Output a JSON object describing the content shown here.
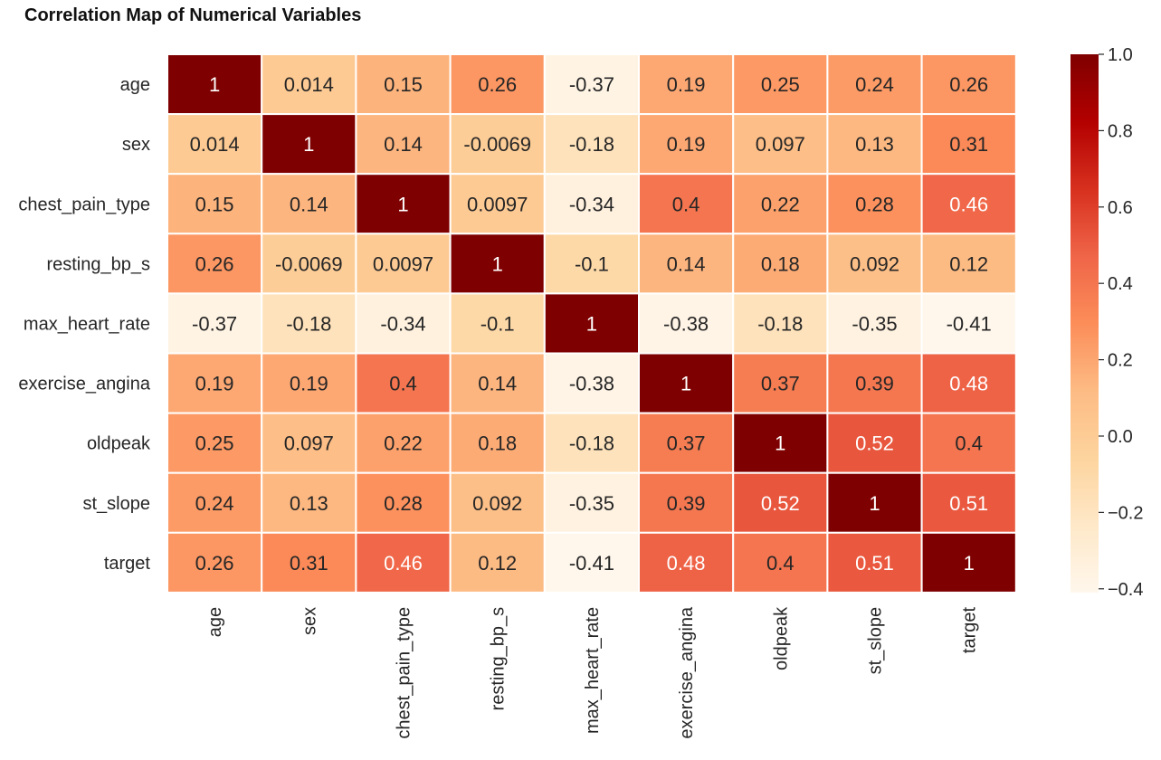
{
  "chart_data": {
    "type": "heatmap",
    "title": "Correlation Map of Numerical Variables",
    "row_labels": [
      "age",
      "sex",
      "chest_pain_type",
      "resting_bp_s",
      "max_heart_rate",
      "exercise_angina",
      "oldpeak",
      "st_slope",
      "target"
    ],
    "col_labels": [
      "age",
      "sex",
      "chest_pain_type",
      "resting_bp_s",
      "max_heart_rate",
      "exercise_angina",
      "oldpeak",
      "st_slope",
      "target"
    ],
    "values": [
      [
        1,
        0.014,
        0.15,
        0.26,
        -0.37,
        0.19,
        0.25,
        0.24,
        0.26
      ],
      [
        0.014,
        1,
        0.14,
        -0.0069,
        -0.18,
        0.19,
        0.097,
        0.13,
        0.31
      ],
      [
        0.15,
        0.14,
        1,
        0.0097,
        -0.34,
        0.4,
        0.22,
        0.28,
        0.46
      ],
      [
        0.26,
        -0.0069,
        0.0097,
        1,
        -0.1,
        0.14,
        0.18,
        0.092,
        0.12
      ],
      [
        -0.37,
        -0.18,
        -0.34,
        -0.1,
        1,
        -0.38,
        -0.18,
        -0.35,
        -0.41
      ],
      [
        0.19,
        0.19,
        0.4,
        0.14,
        -0.38,
        1,
        0.37,
        0.39,
        0.48
      ],
      [
        0.25,
        0.097,
        0.22,
        0.18,
        -0.18,
        0.37,
        1,
        0.52,
        0.4
      ],
      [
        0.24,
        0.13,
        0.28,
        0.092,
        -0.35,
        0.39,
        0.52,
        1,
        0.51
      ],
      [
        0.26,
        0.31,
        0.46,
        0.12,
        -0.41,
        0.48,
        0.4,
        0.51,
        1
      ]
    ],
    "labels": [
      [
        "1",
        "0.014",
        "0.15",
        "0.26",
        "-0.37",
        "0.19",
        "0.25",
        "0.24",
        "0.26"
      ],
      [
        "0.014",
        "1",
        "0.14",
        "-0.0069",
        "-0.18",
        "0.19",
        "0.097",
        "0.13",
        "0.31"
      ],
      [
        "0.15",
        "0.14",
        "1",
        "0.0097",
        "-0.34",
        "0.4",
        "0.22",
        "0.28",
        "0.46"
      ],
      [
        "0.26",
        "-0.0069",
        "0.0097",
        "1",
        "-0.1",
        "0.14",
        "0.18",
        "0.092",
        "0.12"
      ],
      [
        "-0.37",
        "-0.18",
        "-0.34",
        "-0.1",
        "1",
        "-0.38",
        "-0.18",
        "-0.35",
        "-0.41"
      ],
      [
        "0.19",
        "0.19",
        "0.4",
        "0.14",
        "-0.38",
        "1",
        "0.37",
        "0.39",
        "0.48"
      ],
      [
        "0.25",
        "0.097",
        "0.22",
        "0.18",
        "-0.18",
        "0.37",
        "1",
        "0.52",
        "0.4"
      ],
      [
        "0.24",
        "0.13",
        "0.28",
        "0.092",
        "-0.35",
        "0.39",
        "0.52",
        "1",
        "0.51"
      ],
      [
        "0.26",
        "0.31",
        "0.46",
        "0.12",
        "-0.41",
        "0.48",
        "0.4",
        "0.51",
        "1"
      ]
    ],
    "colorbar": {
      "range": [
        -0.41,
        1
      ],
      "ticks": [
        1.0,
        0.8,
        0.6,
        0.4,
        0.2,
        0.0,
        -0.2,
        -0.4
      ],
      "tick_labels": [
        "1.0",
        "0.8",
        "0.6",
        "0.4",
        "0.2",
        "0.0",
        "−0.2",
        "−0.4"
      ]
    },
    "colormap": "OrRd",
    "colormap_stops": [
      "#fff7ec",
      "#fee8c8",
      "#fdd49e",
      "#fdbb84",
      "#fc8d59",
      "#ef6548",
      "#d7301f",
      "#b30000",
      "#7f0000"
    ],
    "cell_border_color": "#ffffff",
    "text_dark": "#262626",
    "text_light": "#ffffff"
  }
}
